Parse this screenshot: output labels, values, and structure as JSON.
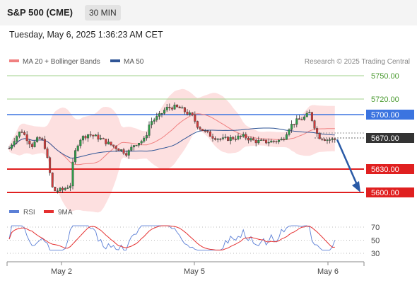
{
  "header": {
    "symbol": "S&P 500 (CME)",
    "timeframe": "30 MIN",
    "timestamp": "Tuesday, May 6, 2025 1:36:23 AM CET"
  },
  "legend": {
    "ma20_label": "MA 20 + Bollinger Bands",
    "ma20_color": "#f08080",
    "ma50_label": "MA 50",
    "ma50_color": "#2f5596",
    "credit": "Research © 2025 Trading Central"
  },
  "rsi_legend": {
    "rsi_label": "RSI",
    "rsi_color": "#5b7fd6",
    "ma9_label": "9MA",
    "ma9_color": "#e53030"
  },
  "chart_data": {
    "type": "candlestick",
    "price_axis": {
      "min": 5585,
      "max": 5760
    },
    "levels": [
      {
        "value": 5750,
        "label": "5750.00",
        "style": "green-line"
      },
      {
        "value": 5720,
        "label": "5720.00",
        "style": "green-line"
      },
      {
        "value": 5700,
        "label": "5700.00",
        "style": "blue-line-box"
      },
      {
        "value": 5670,
        "label": "5670.00",
        "style": "current-price-box"
      },
      {
        "value": 5630,
        "label": "5630.00",
        "style": "red-line-box"
      },
      {
        "value": 5600,
        "label": "5600.00",
        "style": "red-line-box"
      }
    ],
    "x_labels": [
      "May 2",
      "May 5",
      "May 6"
    ],
    "forecast": {
      "from": 5668,
      "to": 5600,
      "direction": "down"
    },
    "rsi_axis": {
      "ticks": [
        70,
        50,
        30
      ]
    },
    "series_description": "30-minute candles with MA20, Bollinger Bands, MA50 and RSI(9MA) panel"
  }
}
